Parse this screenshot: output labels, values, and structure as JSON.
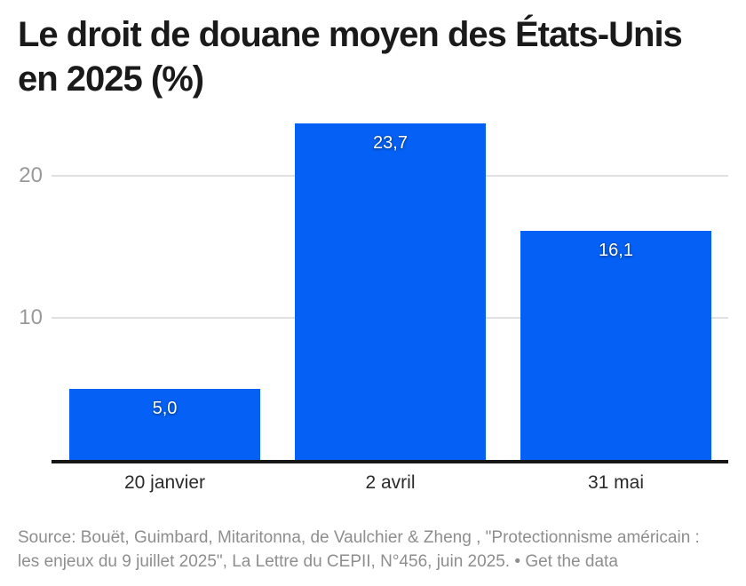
{
  "title": "Le droit de douane moyen des États-Unis en 2025 (%)",
  "chart_data": {
    "type": "bar",
    "title": "Le droit de douane moyen des États-Unis en 2025 (%)",
    "categories": [
      "20 janvier",
      "2 avril",
      "31 mai"
    ],
    "values": [
      5.0,
      23.7,
      16.1
    ],
    "value_labels": [
      "5,0",
      "23,7",
      "16,1"
    ],
    "xlabel": "",
    "ylabel": "",
    "ylim": [
      0,
      24.25
    ],
    "yticks": [
      10,
      20
    ],
    "ytick_labels": [
      "10",
      "20"
    ],
    "grid": true,
    "legend": "none",
    "bar_color": "#0561F6",
    "value_label_color": "#ffffff"
  },
  "footer": {
    "source": "Source: Bouët, Guimbard, Mitaritonna, de Vaulchier & Zheng , \"Protectionnisme américain : les enjeux du 9 juillet 2025\", La Lettre du CEPII, N°456, juin 2025. • ",
    "clipped_link": "Get the data"
  },
  "colors": {
    "bar": "#0561F6",
    "title": "#1a1a1a",
    "axis": "#161616",
    "grid": "#e1e1e1",
    "ytick": "#999999",
    "xtick": "#2b2b2b",
    "value_label": "#ffffff",
    "footer": "#8e8e8e",
    "background": "#ffffff"
  }
}
